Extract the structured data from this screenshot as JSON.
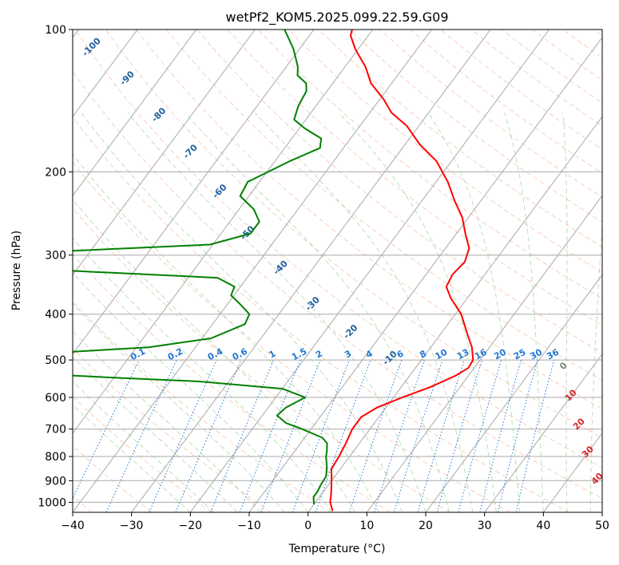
{
  "chart_data": {
    "type": "line",
    "subtype": "skew-t log-p sounding",
    "title": "wetPf2_KOM5.2025.099.22.59.G09",
    "xlabel": "Temperature (°C)",
    "ylabel": "Pressure (hPa)",
    "xlim": [
      -40,
      50
    ],
    "ylim": [
      1050,
      100
    ],
    "y_scale": "log",
    "x_ticks": [
      "−40",
      "−30",
      "−20",
      "−10",
      "0",
      "10",
      "20",
      "30",
      "40",
      "50"
    ],
    "y_ticks": [
      "100",
      "200",
      "300",
      "400",
      "500",
      "600",
      "700",
      "800",
      "900",
      "1000"
    ],
    "grid": true,
    "series": [
      {
        "role": "temperature",
        "color": "#ff0000",
        "points": [
          {
            "p": 1043,
            "t": 4.0
          },
          {
            "p": 1000,
            "t": 2.5
          },
          {
            "p": 960,
            "t": 1.6
          },
          {
            "p": 900,
            "t": 0.0
          },
          {
            "p": 850,
            "t": -1.5
          },
          {
            "p": 800,
            "t": -1.8
          },
          {
            "p": 750,
            "t": -2.3
          },
          {
            "p": 700,
            "t": -3.0
          },
          {
            "p": 660,
            "t": -3.0
          },
          {
            "p": 630,
            "t": -1.5
          },
          {
            "p": 600,
            "t": 1.5
          },
          {
            "p": 570,
            "t": 5.0
          },
          {
            "p": 540,
            "t": 7.8
          },
          {
            "p": 520,
            "t": 9.0
          },
          {
            "p": 500,
            "t": 8.8
          },
          {
            "p": 470,
            "t": 7.0
          },
          {
            "p": 440,
            "t": 4.5
          },
          {
            "p": 400,
            "t": 1.0
          },
          {
            "p": 370,
            "t": -2.8
          },
          {
            "p": 350,
            "t": -5.0
          },
          {
            "p": 330,
            "t": -5.5
          },
          {
            "p": 310,
            "t": -5.0
          },
          {
            "p": 290,
            "t": -6.0
          },
          {
            "p": 270,
            "t": -8.5
          },
          {
            "p": 250,
            "t": -11.0
          },
          {
            "p": 230,
            "t": -14.5
          },
          {
            "p": 210,
            "t": -18.0
          },
          {
            "p": 190,
            "t": -22.5
          },
          {
            "p": 175,
            "t": -27.5
          },
          {
            "p": 160,
            "t": -32.0
          },
          {
            "p": 150,
            "t": -36.3
          },
          {
            "p": 140,
            "t": -39.5
          },
          {
            "p": 130,
            "t": -43.5
          },
          {
            "p": 120,
            "t": -46.5
          },
          {
            "p": 110,
            "t": -50.5
          },
          {
            "p": 103,
            "t": -53.0
          },
          {
            "p": 100,
            "t": -53.5
          }
        ]
      },
      {
        "role": "dewpoint",
        "color": "#008000",
        "points": [
          {
            "p": 1010,
            "t": 0.0
          },
          {
            "p": 975,
            "t": -1.0
          },
          {
            "p": 950,
            "t": -1.0
          },
          {
            "p": 920,
            "t": -1.3
          },
          {
            "p": 880,
            "t": -1.5
          },
          {
            "p": 840,
            "t": -2.6
          },
          {
            "p": 800,
            "t": -4.0
          },
          {
            "p": 780,
            "t": -4.5
          },
          {
            "p": 750,
            "t": -5.5
          },
          {
            "p": 730,
            "t": -7.0
          },
          {
            "p": 700,
            "t": -11.5
          },
          {
            "p": 680,
            "t": -15.0
          },
          {
            "p": 655,
            "t": -17.5
          },
          {
            "p": 630,
            "t": -17.0
          },
          {
            "p": 600,
            "t": -15.0
          },
          {
            "p": 575,
            "t": -20.0
          },
          {
            "p": 555,
            "t": -35.0
          },
          {
            "p": 545,
            "t": -50.0
          },
          {
            "p": 530,
            "t": -70.0
          }
        ]
      },
      {
        "role": "dewpoint",
        "color": "#008000",
        "points": [
          {
            "p": 485,
            "t": -66.0
          },
          {
            "p": 470,
            "t": -48.0
          },
          {
            "p": 450,
            "t": -38.5
          },
          {
            "p": 420,
            "t": -34.5
          },
          {
            "p": 400,
            "t": -35.0
          },
          {
            "p": 380,
            "t": -38.0
          },
          {
            "p": 365,
            "t": -40.5
          },
          {
            "p": 350,
            "t": -41.0
          },
          {
            "p": 335,
            "t": -45.0
          },
          {
            "p": 322,
            "t": -75.0
          }
        ]
      },
      {
        "role": "dewpoint",
        "color": "#008000",
        "points": [
          {
            "p": 295,
            "t": -76.0
          },
          {
            "p": 285,
            "t": -50.5
          },
          {
            "p": 270,
            "t": -45.0
          },
          {
            "p": 255,
            "t": -45.0
          },
          {
            "p": 240,
            "t": -47.5
          },
          {
            "p": 225,
            "t": -51.5
          },
          {
            "p": 210,
            "t": -52.0
          },
          {
            "p": 190,
            "t": -47.5
          },
          {
            "p": 178,
            "t": -44.0
          },
          {
            "p": 170,
            "t": -45.0
          },
          {
            "p": 162,
            "t": -49.0
          },
          {
            "p": 155,
            "t": -52.0
          },
          {
            "p": 145,
            "t": -53.0
          },
          {
            "p": 135,
            "t": -53.5
          },
          {
            "p": 130,
            "t": -54.5
          },
          {
            "p": 125,
            "t": -57.0
          },
          {
            "p": 120,
            "t": -58.0
          },
          {
            "p": 110,
            "t": -61.0
          },
          {
            "p": 100,
            "t": -65.0
          }
        ]
      }
    ],
    "dry_adiabat_labels": [
      "-100",
      "-90",
      "-80",
      "-70",
      "-60",
      "-50",
      "-40",
      "-30",
      "-20",
      "-10"
    ],
    "mixing_ratio_labels": [
      "0.1",
      "0.2",
      "0.4",
      "0.6",
      "1",
      "1.5",
      "2",
      "3",
      "4",
      "6",
      "8",
      "10",
      "13",
      "16",
      "20",
      "25",
      "30",
      "36"
    ],
    "moist_adiabat_labels": [
      "0",
      "10",
      "20",
      "30",
      "40"
    ],
    "colors": {
      "temperature": "#ff0000",
      "dewpoint": "#008000",
      "isotherm": "#a9a9a9",
      "isobar": "#a9a9a9",
      "dry_adiabat": "#f4a582",
      "moist_adiabat": "#8fc98f",
      "mixing_ratio": "#1f77d4",
      "dry_adiabat_label": "#1f5f9f",
      "moist_adiabat_label": "#d62728",
      "zero_label": "#808080"
    }
  }
}
